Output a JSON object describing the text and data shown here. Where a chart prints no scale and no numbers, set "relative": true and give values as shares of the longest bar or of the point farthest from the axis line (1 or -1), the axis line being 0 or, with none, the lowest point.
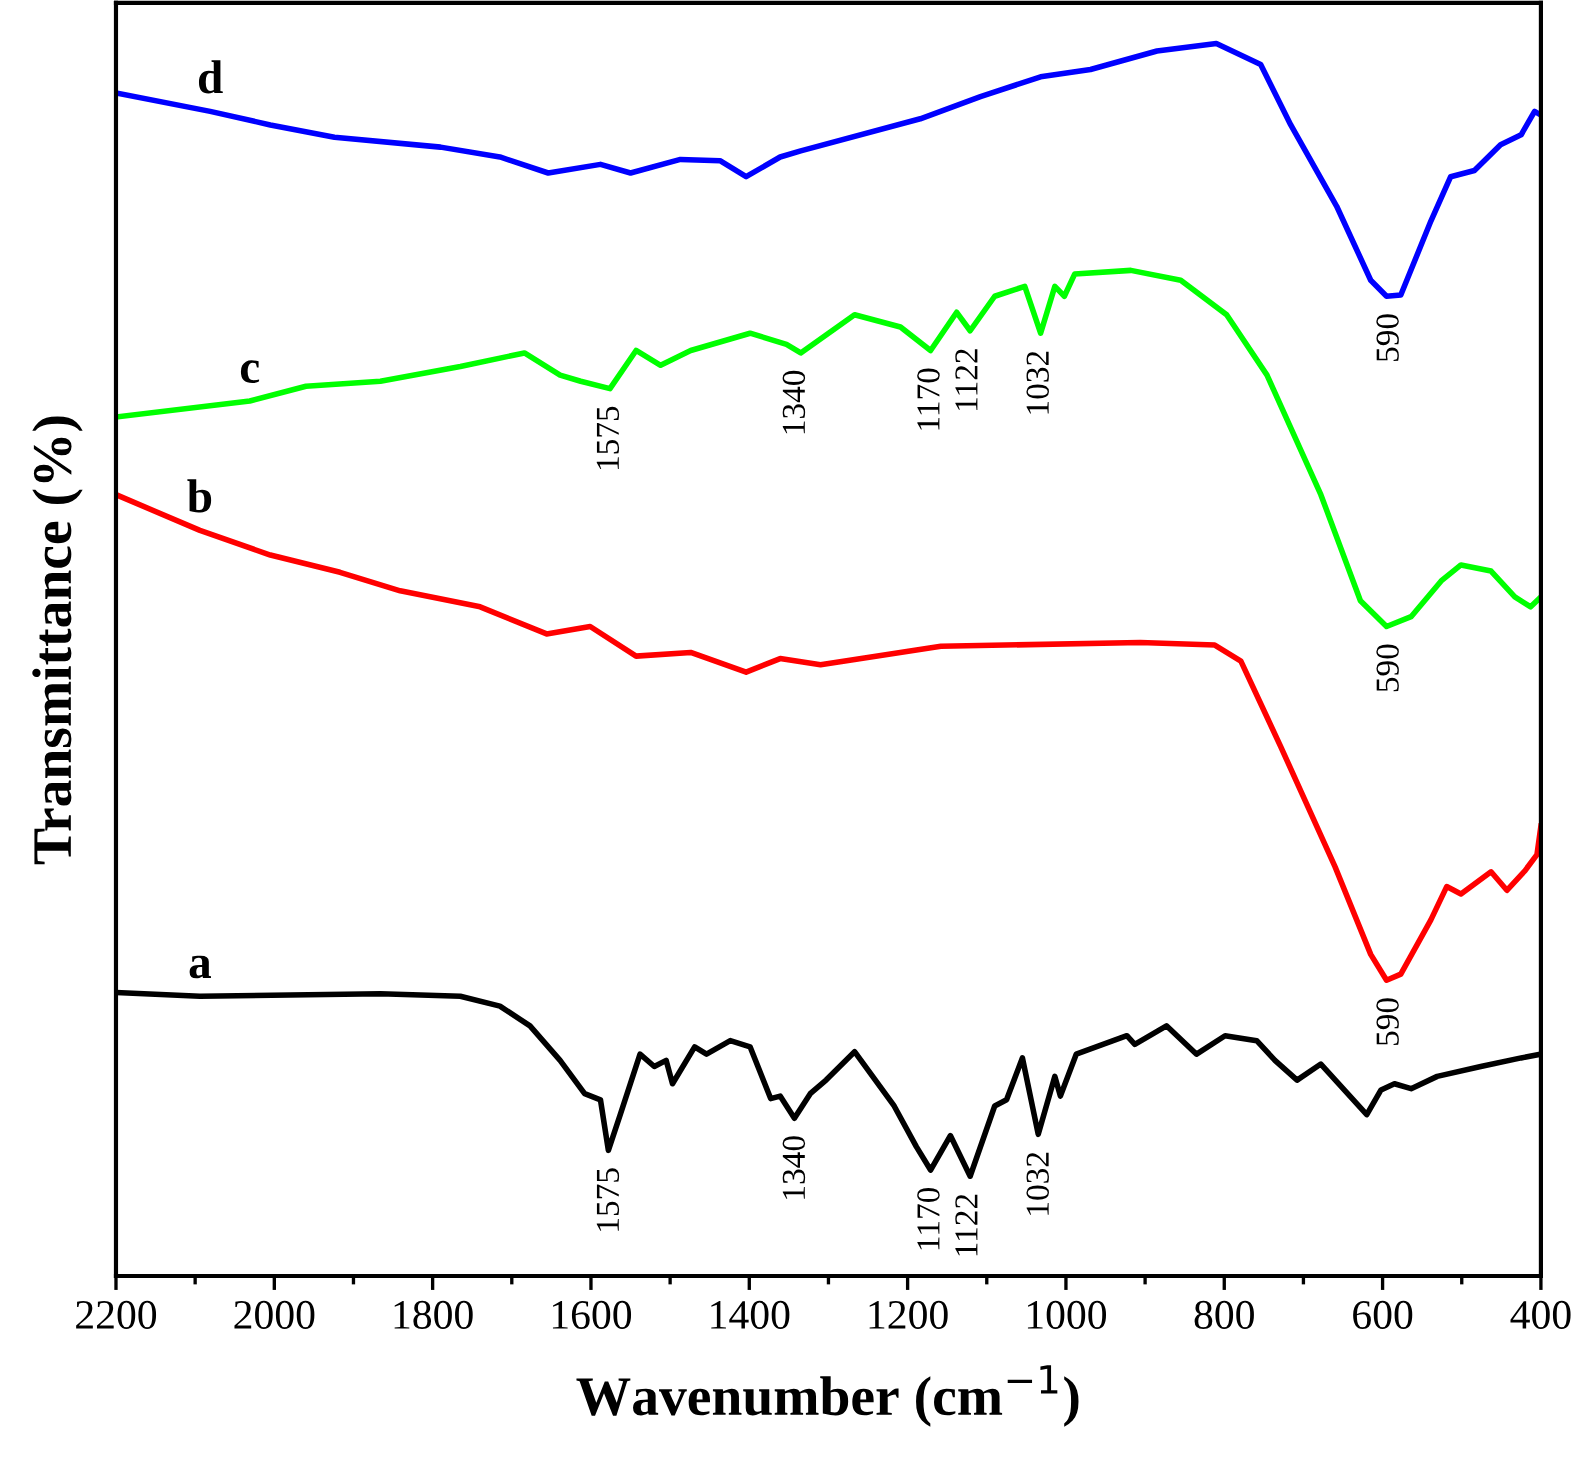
{
  "chart_data": {
    "type": "line",
    "relative": true,
    "xlabel": "Wavenumber (cm$^{−1}$)",
    "ylabel": "Transmittance (%)",
    "xlim": [
      2200,
      400
    ],
    "xticks": [
      2200,
      2000,
      1800,
      1600,
      1400,
      1200,
      1000,
      800,
      600,
      400
    ],
    "grid": false,
    "legend": false,
    "marker": "none",
    "line_style": "solid",
    "series": [
      {
        "name": "a",
        "color": "#000000",
        "x": [
          2200,
          2094,
          1866,
          1765,
          1715,
          1677,
          1639,
          1608,
          1588,
          1578,
          1563,
          1538,
          1520,
          1505,
          1497,
          1469,
          1454,
          1424,
          1399,
          1373,
          1361,
          1343,
          1323,
          1303,
          1267,
          1217,
          1189,
          1171,
          1146,
          1121,
          1090,
          1075,
          1055,
          1035,
          1014,
          1007,
          987,
          923,
          913,
          873,
          835,
          799,
          759,
          736,
          708,
          678,
          620,
          602,
          585,
          564,
          531,
          476,
          425,
          400
        ],
        "values": [
          0.23,
          0.227,
          0.229,
          0.227,
          0.219,
          0.203,
          0.175,
          0.148,
          0.143,
          0.102,
          0.131,
          0.18,
          0.17,
          0.175,
          0.156,
          0.186,
          0.18,
          0.191,
          0.186,
          0.144,
          0.146,
          0.128,
          0.148,
          0.159,
          0.182,
          0.138,
          0.105,
          0.086,
          0.114,
          0.081,
          0.138,
          0.143,
          0.177,
          0.115,
          0.162,
          0.146,
          0.18,
          0.195,
          0.188,
          0.203,
          0.18,
          0.195,
          0.191,
          0.175,
          0.159,
          0.172,
          0.131,
          0.151,
          0.156,
          0.152,
          0.162,
          0.17,
          0.177,
          0.18
        ]
      },
      {
        "name": "b",
        "color": "#ff0000",
        "x": [
          2200,
          2094,
          2005,
          1917,
          1841,
          1740,
          1656,
          1601,
          1543,
          1474,
          1404,
          1361,
          1310,
          1158,
          906,
          812,
          779,
          729,
          660,
          615,
          595,
          577,
          539,
          519,
          501,
          463,
          443,
          420,
          405,
          400
        ],
        "values": [
          0.634,
          0.605,
          0.585,
          0.571,
          0.556,
          0.543,
          0.521,
          0.527,
          0.503,
          0.506,
          0.49,
          0.501,
          0.496,
          0.511,
          0.514,
          0.512,
          0.499,
          0.43,
          0.332,
          0.261,
          0.24,
          0.245,
          0.289,
          0.316,
          0.31,
          0.328,
          0.313,
          0.329,
          0.342,
          0.365
        ]
      },
      {
        "name": "c",
        "color": "#00ff00",
        "x": [
          2200,
          2031,
          1960,
          1866,
          1765,
          1684,
          1639,
          1613,
          1576,
          1543,
          1512,
          1474,
          1399,
          1353,
          1335,
          1267,
          1209,
          1171,
          1138,
          1121,
          1090,
          1052,
          1032,
          1014,
          1002,
          989,
          918,
          855,
          797,
          746,
          678,
          628,
          595,
          564,
          526,
          501,
          463,
          433,
          413,
          400
        ],
        "values": [
          0.697,
          0.71,
          0.722,
          0.726,
          0.738,
          0.749,
          0.731,
          0.726,
          0.72,
          0.751,
          0.739,
          0.751,
          0.765,
          0.756,
          0.749,
          0.78,
          0.77,
          0.751,
          0.782,
          0.767,
          0.795,
          0.803,
          0.765,
          0.803,
          0.795,
          0.813,
          0.816,
          0.808,
          0.78,
          0.731,
          0.634,
          0.548,
          0.527,
          0.535,
          0.564,
          0.577,
          0.572,
          0.551,
          0.543,
          0.551
        ]
      },
      {
        "name": "d",
        "color": "#0000ff",
        "x": [
          2200,
          2081,
          2005,
          1924,
          1790,
          1715,
          1654,
          1588,
          1550,
          1487,
          1437,
          1404,
          1361,
          1335,
          1184,
          1108,
          1032,
          969,
          885,
          810,
          754,
          716,
          658,
          615,
          595,
          577,
          539,
          514,
          484,
          451,
          425,
          408,
          400
        ],
        "values": [
          0.96,
          0.945,
          0.934,
          0.924,
          0.916,
          0.908,
          0.895,
          0.902,
          0.895,
          0.906,
          0.905,
          0.892,
          0.908,
          0.913,
          0.939,
          0.957,
          0.973,
          0.979,
          0.994,
          1.0,
          0.983,
          0.934,
          0.868,
          0.808,
          0.795,
          0.796,
          0.856,
          0.892,
          0.897,
          0.918,
          0.926,
          0.945,
          0.942
        ]
      }
    ],
    "annotations": [
      {
        "text": "1575",
        "x": 1575,
        "y": 0.72
      },
      {
        "text": "1340",
        "x": 1340,
        "y": 0.749
      },
      {
        "text": "1170",
        "x": 1170,
        "y": 0.751
      },
      {
        "text": "1122",
        "x": 1122,
        "y": 0.767
      },
      {
        "text": "1032",
        "x": 1032,
        "y": 0.765
      },
      {
        "text": "590",
        "x": 590,
        "y": 0.527
      },
      {
        "text": "590",
        "x": 590,
        "y": 0.795
      },
      {
        "text": "590",
        "x": 590,
        "y": 0.24
      },
      {
        "text": "1575",
        "x": 1575,
        "y": 0.102
      },
      {
        "text": "1340",
        "x": 1340,
        "y": 0.128
      },
      {
        "text": "1170",
        "x": 1170,
        "y": 0.086
      },
      {
        "text": "1122",
        "x": 1122,
        "y": 0.081
      },
      {
        "text": "1032",
        "x": 1032,
        "y": 0.115
      }
    ]
  }
}
